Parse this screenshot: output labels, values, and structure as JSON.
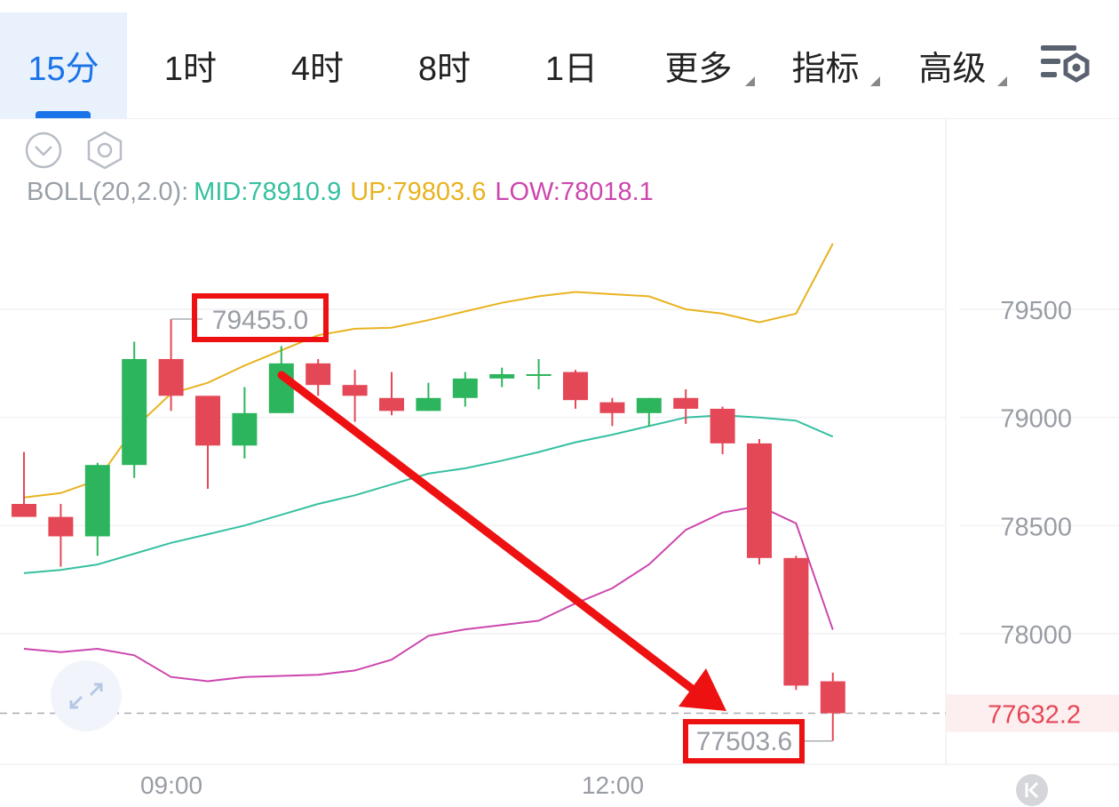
{
  "tabs": [
    {
      "label": "15分",
      "active": true
    },
    {
      "label": "1时"
    },
    {
      "label": "4时"
    },
    {
      "label": "8时"
    },
    {
      "label": "1日"
    },
    {
      "label": "更多",
      "dropdown": true
    },
    {
      "label": "指标",
      "dropdown": true
    },
    {
      "label": "高级",
      "dropdown": true
    }
  ],
  "toolbar_icons": [
    "chevron-down-icon",
    "hexagon-settings-icon",
    "chart-settings-icon",
    "expand-icon",
    "scroll-to-latest-icon"
  ],
  "indicator": {
    "name": "BOLL(20,2.0):",
    "mid": "MID:78910.9",
    "up": "UP:79803.6",
    "low": "LOW:78018.1"
  },
  "colors": {
    "up_candle": "#2db55d",
    "down_candle": "#e44856",
    "mid_line": "#36c0a0",
    "up_line": "#e8b320",
    "low_line": "#cc47ad",
    "accent": "#1a73e8",
    "annotation": "#ee1111"
  },
  "chart_data": {
    "type": "candlestick",
    "ylim": [
      77350,
      80200
    ],
    "yticks": [
      79500,
      79000,
      78500,
      78000
    ],
    "ytick_labels": [
      "79500",
      "79000",
      "78500",
      "78000"
    ],
    "xtick_labels": [
      "09:00",
      "12:00"
    ],
    "current_price": 77632.2,
    "current_price_label": "77632.2",
    "candles": [
      {
        "o": 78600,
        "h": 78840,
        "l": 78560,
        "c": 78540
      },
      {
        "o": 78540,
        "h": 78600,
        "l": 78310,
        "c": 78450
      },
      {
        "o": 78450,
        "h": 78790,
        "l": 78360,
        "c": 78780
      },
      {
        "o": 78780,
        "h": 79350,
        "l": 78720,
        "c": 79270
      },
      {
        "o": 79270,
        "h": 79455,
        "l": 79030,
        "c": 79100
      },
      {
        "o": 79100,
        "h": 79100,
        "l": 78670,
        "c": 78870
      },
      {
        "o": 78870,
        "h": 79140,
        "l": 78810,
        "c": 79020
      },
      {
        "o": 79020,
        "h": 79330,
        "l": 79020,
        "c": 79250
      },
      {
        "o": 79250,
        "h": 79270,
        "l": 79100,
        "c": 79150
      },
      {
        "o": 79150,
        "h": 79220,
        "l": 78980,
        "c": 79100
      },
      {
        "o": 79090,
        "h": 79210,
        "l": 79010,
        "c": 79030
      },
      {
        "o": 79030,
        "h": 79160,
        "l": 79030,
        "c": 79090
      },
      {
        "o": 79090,
        "h": 79210,
        "l": 79050,
        "c": 79180
      },
      {
        "o": 79180,
        "h": 79230,
        "l": 79140,
        "c": 79200
      },
      {
        "o": 79200,
        "h": 79270,
        "l": 79130,
        "c": 79200
      },
      {
        "o": 79210,
        "h": 79220,
        "l": 79040,
        "c": 79080
      },
      {
        "o": 79070,
        "h": 79090,
        "l": 78960,
        "c": 79020
      },
      {
        "o": 79020,
        "h": 79090,
        "l": 78960,
        "c": 79090
      },
      {
        "o": 79090,
        "h": 79130,
        "l": 78970,
        "c": 79040
      },
      {
        "o": 79040,
        "h": 79050,
        "l": 78830,
        "c": 78880
      },
      {
        "o": 78880,
        "h": 78900,
        "l": 78320,
        "c": 78350
      },
      {
        "o": 78350,
        "h": 78360,
        "l": 77740,
        "c": 77760
      },
      {
        "o": 77780,
        "h": 77820,
        "l": 77503.6,
        "c": 77632.2
      }
    ],
    "mid": [
      78280,
      78295,
      78320,
      78370,
      78420,
      78460,
      78500,
      78550,
      78600,
      78640,
      78690,
      78740,
      78765,
      78800,
      78840,
      78885,
      78920,
      78960,
      79000,
      79010,
      79000,
      78985,
      78910.9
    ],
    "upper": [
      78630,
      78650,
      78710,
      78950,
      79110,
      79160,
      79240,
      79310,
      79380,
      79410,
      79415,
      79450,
      79490,
      79530,
      79560,
      79580,
      79570,
      79560,
      79500,
      79480,
      79440,
      79480,
      79803.6
    ],
    "lower": [
      77930,
      77915,
      77930,
      77900,
      77800,
      77780,
      77800,
      77805,
      77810,
      77830,
      77880,
      77990,
      78020,
      78040,
      78060,
      78140,
      78210,
      78320,
      78480,
      78560,
      78590,
      78510,
      78018.1
    ],
    "annotations": [
      {
        "label": "79455.0",
        "value": 79455.0
      },
      {
        "label": "77503.6",
        "value": 77503.6
      }
    ]
  }
}
